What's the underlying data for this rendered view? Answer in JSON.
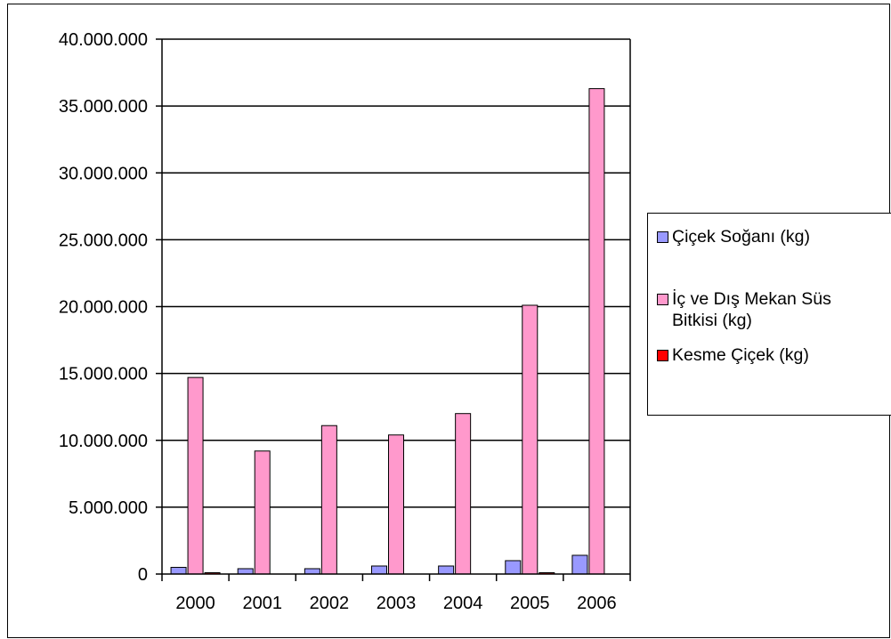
{
  "chart_data": {
    "type": "bar",
    "title": "",
    "xlabel": "",
    "ylabel": "",
    "categories": [
      "2000",
      "2001",
      "2002",
      "2003",
      "2004",
      "2005",
      "2006"
    ],
    "ylim": [
      0,
      40000000
    ],
    "yticks": [
      0,
      5000000,
      10000000,
      15000000,
      20000000,
      25000000,
      30000000,
      35000000,
      40000000
    ],
    "ytick_labels": [
      "0",
      "5.000.000",
      "10.000.000",
      "15.000.000",
      "20.000.000",
      "25.000.000",
      "30.000.000",
      "35.000.000",
      "40.000.000"
    ],
    "grid": "horizontal",
    "legend_position": "right",
    "series": [
      {
        "name": "Çiçek Soğanı (kg)",
        "color": "#9999ff",
        "values": [
          500000,
          400000,
          400000,
          600000,
          600000,
          1000000,
          1400000
        ]
      },
      {
        "name": "İç ve Dış Mekan Süs Bitkisi (kg)",
        "color": "#ff99cc",
        "values": [
          14700000,
          9200000,
          11100000,
          10400000,
          12000000,
          20100000,
          36300000
        ]
      },
      {
        "name": "Kesme Çiçek (kg)",
        "color": "#ff0000",
        "values": [
          100000,
          0,
          0,
          0,
          0,
          100000,
          0
        ]
      }
    ]
  }
}
